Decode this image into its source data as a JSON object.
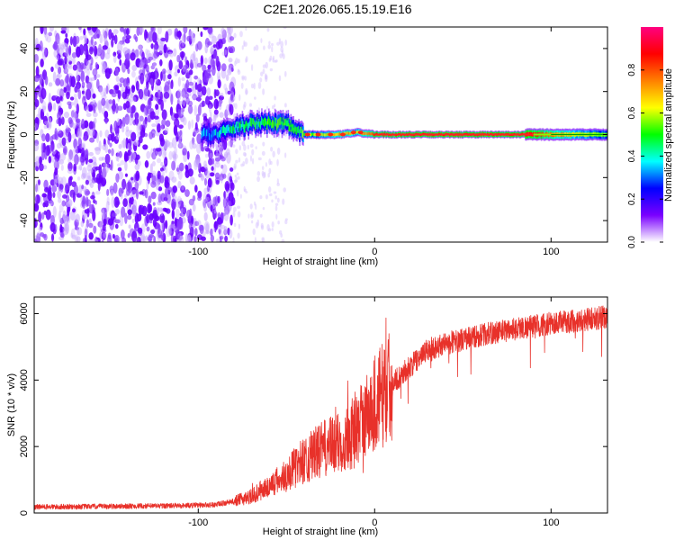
{
  "figure_title": "C2E1.2026.065.15.19.E16",
  "chart_data": [
    {
      "type": "heatmap",
      "title": "C2E1.2026.065.15.19.E16",
      "xlabel": "Height of straight line (km)",
      "ylabel": "Frequency (Hz)",
      "xlim": [
        -193,
        132
      ],
      "ylim": [
        -50,
        50
      ],
      "x_ticks": [
        -100,
        0,
        100
      ],
      "x_tick_labels": [
        "-100",
        "0",
        "100"
      ],
      "y_ticks": [
        -40,
        -20,
        0,
        20,
        40
      ],
      "y_tick_labels": [
        "-40",
        "-20",
        "0",
        "20",
        "40"
      ],
      "colorbar": {
        "label": "Normalized spectral amplitude",
        "range": [
          0,
          1
        ],
        "ticks": [
          0,
          0.2,
          0.4,
          0.6,
          0.8
        ],
        "tick_labels": [
          "0.0",
          "0.2",
          "0.4",
          "0.6",
          "0.8"
        ],
        "colormap": [
          "#ffffff",
          "#7a00ff",
          "#0000ff",
          "#00ffff",
          "#00ff00",
          "#ffff00",
          "#ff8000",
          "#ff0000",
          "#ff0080"
        ]
      },
      "noise_region_km": [
        -193,
        -80
      ],
      "signal_track": [
        {
          "x": -98,
          "f": 0,
          "amp": 0.3
        },
        {
          "x": -90,
          "f": 0,
          "amp": 0.35
        },
        {
          "x": -80,
          "f": 3,
          "amp": 0.45
        },
        {
          "x": -70,
          "f": 5,
          "amp": 0.45
        },
        {
          "x": -60,
          "f": 5,
          "amp": 0.5
        },
        {
          "x": -50,
          "f": 5,
          "amp": 0.5
        },
        {
          "x": -45,
          "f": 3,
          "amp": 0.45
        },
        {
          "x": -40,
          "f": 0,
          "amp": 0.55
        },
        {
          "x": -30,
          "f": 0,
          "amp": 0.6
        },
        {
          "x": -20,
          "f": 0,
          "amp": 0.7
        },
        {
          "x": -10,
          "f": 1,
          "amp": 0.65
        },
        {
          "x": 0,
          "f": 0,
          "amp": 0.85
        },
        {
          "x": 50,
          "f": 0,
          "amp": 0.9
        },
        {
          "x": 90,
          "f": 0,
          "amp": 0.85
        },
        {
          "x": 132,
          "f": 0,
          "amp": 0.5
        }
      ]
    },
    {
      "type": "line",
      "xlabel": "Height of straight line (km)",
      "ylabel": "SNR (10 * v/v)",
      "xlim": [
        -193,
        132
      ],
      "ylim": [
        0,
        6500
      ],
      "x_ticks": [
        -100,
        0,
        100
      ],
      "x_tick_labels": [
        "-100",
        "0",
        "100"
      ],
      "y_ticks": [
        0,
        2000,
        4000,
        6000
      ],
      "y_tick_labels": [
        "0",
        "2000",
        "4000",
        "6000"
      ],
      "color": "#e8312a",
      "series": [
        {
          "name": "SNR",
          "x": [
            -193,
            -150,
            -110,
            -90,
            -80,
            -70,
            -60,
            -50,
            -40,
            -30,
            -20,
            -10,
            0,
            10,
            20,
            30,
            40,
            60,
            80,
            100,
            132
          ],
          "y": [
            180,
            200,
            220,
            250,
            350,
            500,
            800,
            1150,
            1600,
            1900,
            2100,
            2500,
            3300,
            3900,
            4400,
            4900,
            5100,
            5350,
            5550,
            5700,
            5900
          ]
        }
      ]
    }
  ]
}
